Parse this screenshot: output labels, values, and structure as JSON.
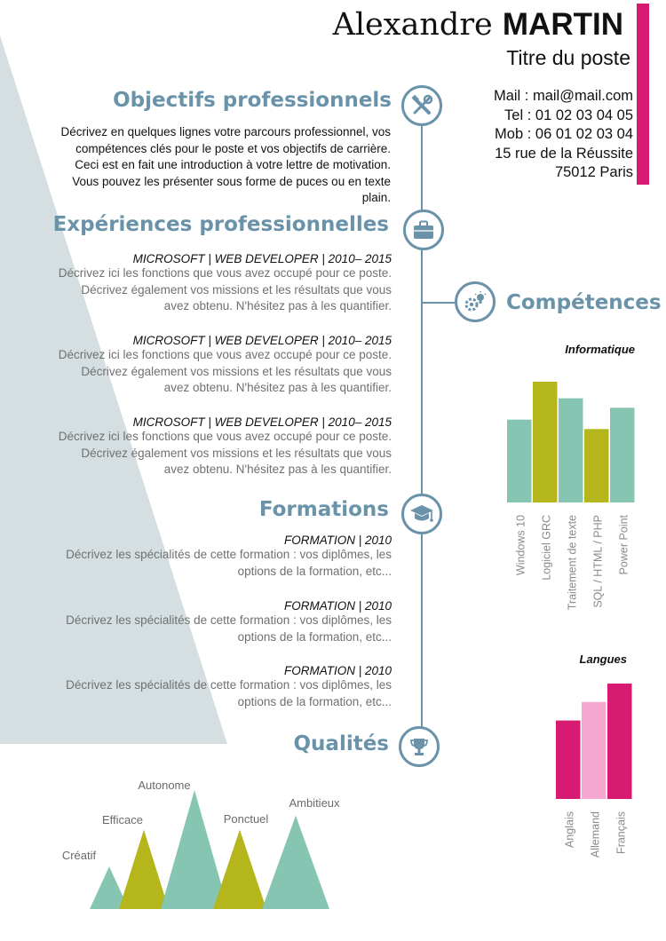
{
  "header": {
    "first_name": "Alexandre",
    "last_name": "MARTIN",
    "job_title": "Titre du poste",
    "contact": [
      "Mail : mail@mail.com",
      "Tel : 01 02 03 04 05",
      "Mob : 06 01 02 03 04",
      "15 rue de la Réussite",
      "75012 Paris"
    ]
  },
  "objectives": {
    "title": "Objectifs professionnels",
    "icon": "tools-icon",
    "text": [
      "Décrivez en quelques lignes votre parcours professionnel, vos",
      "compétences clés pour le poste et vos objectifs de carrière.",
      "Ceci est en fait une introduction à votre lettre de motivation.",
      "Vous pouvez les présenter sous forme de puces ou en texte",
      "plain."
    ]
  },
  "experience": {
    "title": "Expériences professionnelles",
    "icon": "briefcase-icon",
    "entries": [
      {
        "heading": "MICROSOFT | WEB  DEVELOPER | 2010– 2015",
        "lines": [
          "Décrivez ici les fonctions que vous avez occupé pour ce poste.",
          "Décrivez également vos missions et les résultats que vous",
          "avez obtenu. N'hésitez pas à les quantifier."
        ]
      },
      {
        "heading": "MICROSOFT | WEB  DEVELOPER | 2010– 2015",
        "lines": [
          "Décrivez ici les fonctions que vous avez occupé pour ce poste.",
          "Décrivez également vos missions et les résultats que vous",
          "avez obtenu. N'hésitez pas à les quantifier."
        ]
      },
      {
        "heading": "MICROSOFT | WEB  DEVELOPER | 2010– 2015",
        "lines": [
          "Décrivez ici les fonctions que vous avez occupé pour ce poste.",
          "Décrivez également vos missions et les résultats que vous",
          "avez obtenu. N'hésitez pas à les quantifier."
        ]
      }
    ]
  },
  "education": {
    "title": "Formations",
    "icon": "graduation-cap-icon",
    "entries": [
      {
        "heading": "FORMATION | 2010",
        "lines": [
          "Décrivez les spécialités de cette formation : vos diplômes,  les",
          "options  de la formation, etc..."
        ]
      },
      {
        "heading": "FORMATION | 2010",
        "lines": [
          "Décrivez les spécialités de cette formation : vos diplômes,  les",
          "options  de la formation, etc..."
        ]
      },
      {
        "heading": "FORMATION | 2010",
        "lines": [
          "Décrivez les spécialités de cette formation : vos diplômes,  les",
          "options  de la formation, etc..."
        ]
      }
    ]
  },
  "skills": {
    "title": "Compétences",
    "icon": "gear-bulb-icon"
  },
  "qualities": {
    "title": "Qualités",
    "icon": "trophy-icon"
  },
  "colors": {
    "accent": "#6a93aa",
    "pink": "#d81b72",
    "light_pink": "#f6a7cf",
    "teal": "#87c5b3",
    "olive": "#b5b51c",
    "triangle": "#d5dfe2"
  },
  "chart_data": [
    {
      "type": "bar",
      "title": "Informatique",
      "categories": [
        "Windows 10",
        "Logiciel GRC",
        "Traitement de texte",
        "SQL / HTML / PHP",
        "Power Point"
      ],
      "values": [
        3.5,
        5.1,
        4.4,
        3.1,
        4.0
      ],
      "colors": [
        "#87c5b3",
        "#b5b51c",
        "#87c5b3",
        "#b5b51c",
        "#87c5b3"
      ],
      "ylim": [
        0,
        5.1
      ]
    },
    {
      "type": "bar",
      "title": "Langues",
      "categories": [
        "Anglais",
        "Allemand",
        "Français"
      ],
      "values": [
        3.4,
        4.2,
        5.0
      ],
      "colors": [
        "#d81b72",
        "#f6a7cf",
        "#d81b72"
      ],
      "ylim": [
        0,
        5.0
      ]
    },
    {
      "type": "area",
      "title": "",
      "categories": [
        "Créatif",
        "Efficace",
        "Autonome",
        "Ponctuel",
        "Ambitieux"
      ],
      "values": [
        1.5,
        2.8,
        4.2,
        2.8,
        3.3
      ],
      "colors": [
        "#87c5b3",
        "#b5b51c",
        "#87c5b3",
        "#b5b51c",
        "#87c5b3"
      ],
      "ylim": [
        0,
        4.2
      ]
    }
  ]
}
